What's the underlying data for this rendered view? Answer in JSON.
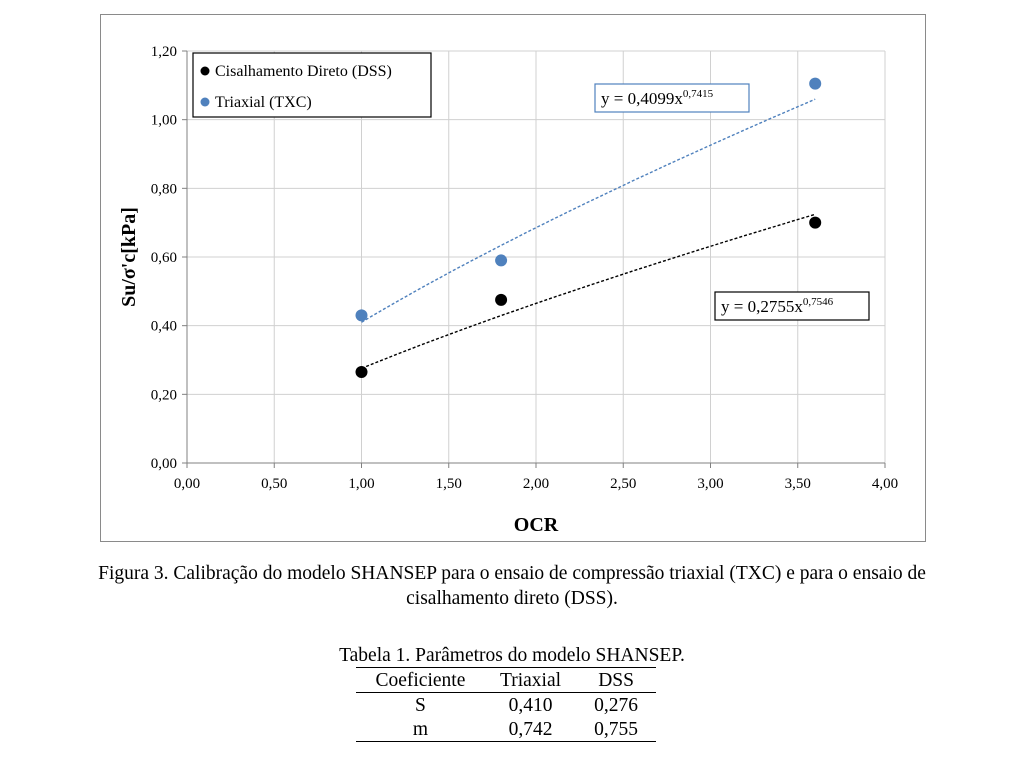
{
  "chart_data": {
    "type": "scatter",
    "xlabel": "OCR",
    "ylabel": "Su/σ'c[kPa]",
    "xlim": [
      0,
      4
    ],
    "ylim": [
      0,
      1.2
    ],
    "xticks": [
      0,
      0.5,
      1,
      1.5,
      2,
      2.5,
      3,
      3.5,
      4
    ],
    "xtick_labels": [
      "0,00",
      "0,50",
      "1,00",
      "1,50",
      "2,00",
      "2,50",
      "3,00",
      "3,50",
      "4,00"
    ],
    "yticks": [
      0,
      0.2,
      0.4,
      0.6,
      0.8,
      1.0,
      1.2
    ],
    "ytick_labels": [
      "0,00",
      "0,20",
      "0,40",
      "0,60",
      "0,80",
      "1,00",
      "1,20"
    ],
    "grid": true,
    "legend_position": "top-left",
    "series": [
      {
        "name": "Cisalhamento Direto (DSS)",
        "color": "#000000",
        "x": [
          1.0,
          1.8,
          3.6
        ],
        "y": [
          0.265,
          0.475,
          0.7
        ],
        "trendline": {
          "type": "power",
          "a": 0.2755,
          "b": 0.7546,
          "color": "#000000",
          "equation_base": "y = 0,2755x",
          "equation_exp": "0,7546",
          "box_border": "#000000"
        }
      },
      {
        "name": "Triaxial (TXC)",
        "color": "#4f81bd",
        "x": [
          1.0,
          1.8,
          3.6
        ],
        "y": [
          0.43,
          0.59,
          1.105
        ],
        "trendline": {
          "type": "power",
          "a": 0.4099,
          "b": 0.7415,
          "color": "#4f81bd",
          "equation_base": "y = 0,4099x",
          "equation_exp": "0,7415",
          "box_border": "#4f81bd"
        }
      }
    ]
  },
  "figure_caption": {
    "line1": "Figura 3. Calibração do modelo SHANSEP para o ensaio de compressão triaxial (TXC) e para o ensaio de",
    "line2": "cisalhamento direto (DSS)."
  },
  "table": {
    "caption": "Tabela 1. Parâmetros do modelo SHANSEP.",
    "headers": [
      "Coeficiente",
      "Triaxial",
      "DSS"
    ],
    "rows": [
      [
        "S",
        "0,410",
        "0,276"
      ],
      [
        "m",
        "0,742",
        "0,755"
      ]
    ]
  }
}
